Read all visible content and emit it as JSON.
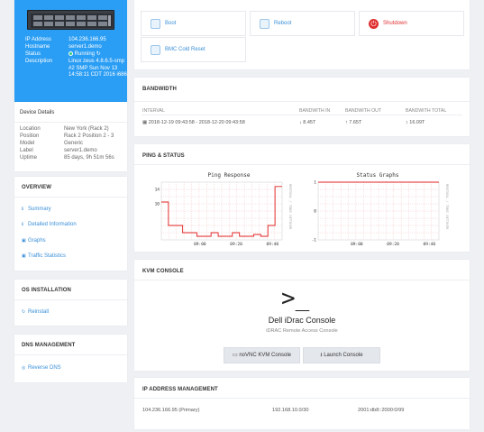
{
  "server": {
    "rows": [
      {
        "key": "IP Address",
        "value": "104.236.166.95"
      },
      {
        "key": "Hostname",
        "value": "server1.demo"
      },
      {
        "key": "Status",
        "value": "Running"
      },
      {
        "key": "Description",
        "value": "Linux zeus 4.8.6.5-smp #2 SMP Sun Nov 13 14:58:11 CDT 2016 i686"
      }
    ],
    "status_color": "#2ecc71"
  },
  "device": {
    "title": "Device Details",
    "rows": [
      {
        "key": "Location",
        "value": "New York (Rack 2)"
      },
      {
        "key": "Position",
        "value": "Rack 2 Position 2 - 3"
      },
      {
        "key": "Model",
        "value": "Generic"
      },
      {
        "key": "Label",
        "value": "server1.demo"
      },
      {
        "key": "Uptime",
        "value": "85 days, 9h 51m 56s"
      }
    ]
  },
  "overview": {
    "title": "OVERVIEW",
    "items": [
      {
        "label": "Summary",
        "icon": "info-icon"
      },
      {
        "label": "Detailed Information",
        "icon": "info-icon"
      },
      {
        "label": "Graphs",
        "icon": "chart-icon"
      },
      {
        "label": "Traffic Statistics",
        "icon": "chart-icon"
      }
    ]
  },
  "os": {
    "title": "OS INSTALLATION",
    "items": [
      {
        "label": "Reinstall",
        "icon": "refresh-icon"
      }
    ]
  },
  "dns": {
    "title": "DNS MANAGEMENT",
    "items": [
      {
        "label": "Reverse DNS",
        "icon": "globe-icon"
      }
    ]
  },
  "actions": {
    "boot": "Boot",
    "reboot": "Reboot",
    "shutdown": "Shutdown",
    "bmc": "BMC Cold Reset",
    "accent": "#3a8fd8",
    "danger": "#e03030"
  },
  "bandwidth": {
    "title": "BANDWIDTH",
    "headers": [
      "INTERVAL",
      "BANDWITH IN",
      "BANDWITH OUT",
      "BANDWITH TOTAL"
    ],
    "row": {
      "interval": "2018-12-19 09:43:58 - 2018-12-20 09:43:58",
      "in": "8.45T",
      "out": "7.65T",
      "total": "16.09T"
    }
  },
  "ping": {
    "title": "PING & STATUS",
    "side_label": "RRDTOOL / TOBI OETIKER"
  },
  "chart_data": [
    {
      "type": "line",
      "title": "Ping Response",
      "x_ticks": [
        "09:00",
        "09:20",
        "09:40"
      ],
      "y_ticks": [
        14,
        10
      ],
      "ylim": [
        0,
        16
      ],
      "grid": true,
      "x": [
        0,
        1,
        2,
        3,
        4,
        5,
        6,
        7,
        8,
        9,
        10,
        11,
        12,
        13,
        14,
        15,
        16,
        17
      ],
      "values": [
        10.5,
        4,
        4,
        2,
        2,
        1,
        1,
        2,
        1,
        1,
        2,
        1,
        1,
        1.5,
        1,
        4,
        14.8,
        14.8
      ],
      "color": "#e02020"
    },
    {
      "type": "line",
      "title": "Status Graphs",
      "x_ticks": [
        "09:00",
        "09:20",
        "09:40"
      ],
      "y_ticks": [
        1,
        0,
        -1
      ],
      "ylim": [
        -1,
        1
      ],
      "grid": true,
      "x": [
        0,
        17
      ],
      "values": [
        1,
        1
      ],
      "color": "#e02020"
    }
  ],
  "kvm": {
    "title": "KVM CONSOLE",
    "console_title": "Dell iDrac Console",
    "console_sub": "iDRAC Remote Access Console",
    "novnc": "noVNC KVM Console",
    "launch": "Launch Console"
  },
  "ip_mgmt": {
    "title": "IP ADDRESS MANAGEMENT",
    "addresses": [
      "104.236.166.95 (Primary)",
      "192.168.10.0/30",
      "2001:db8::2000:0/99"
    ]
  }
}
